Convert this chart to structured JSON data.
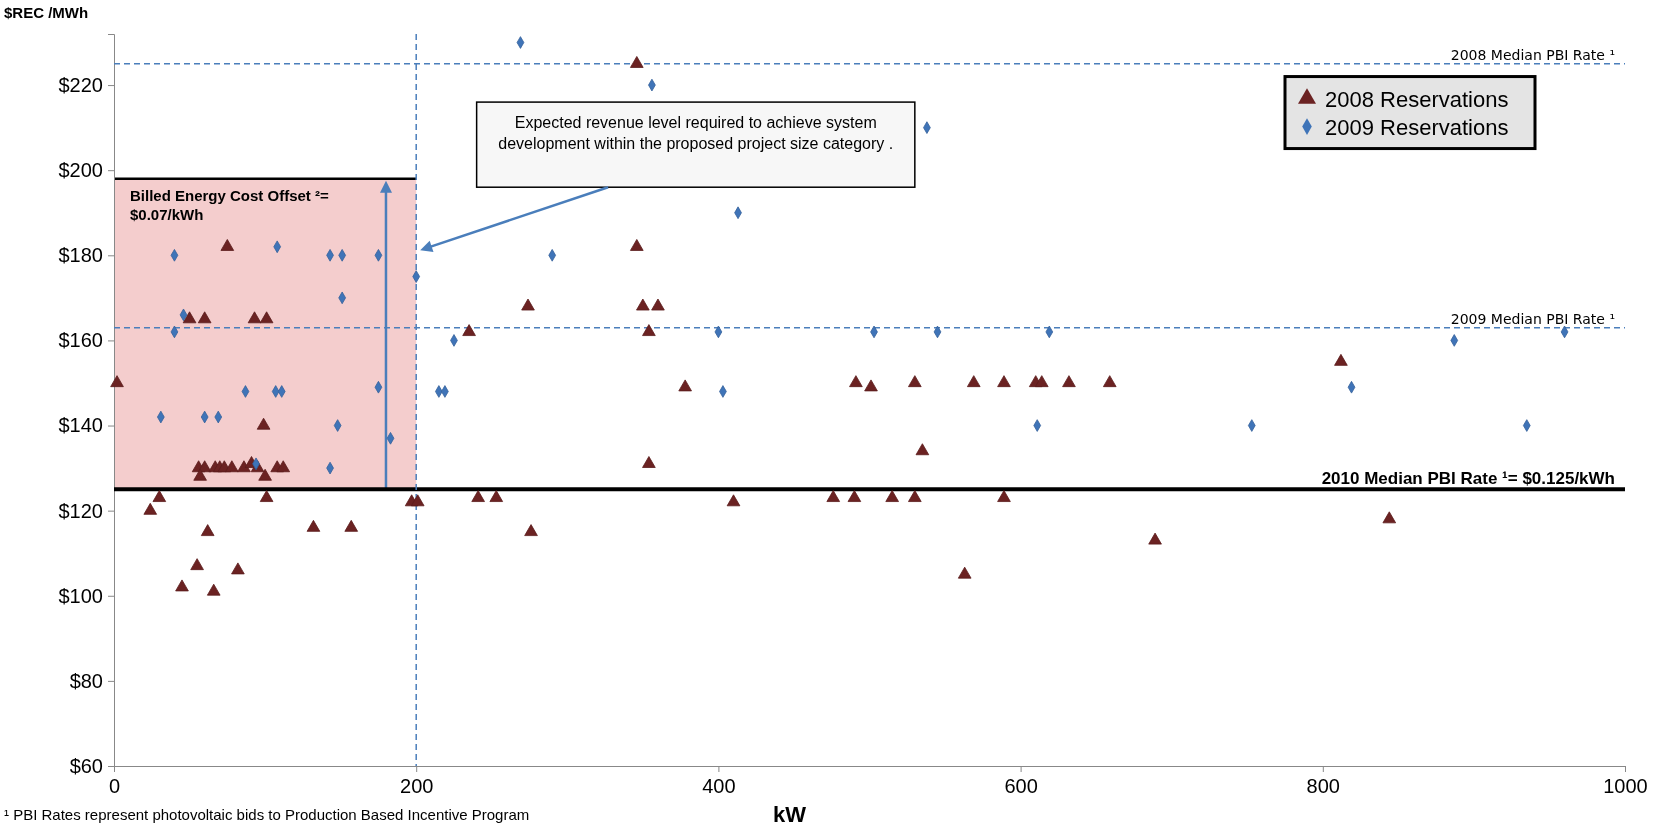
{
  "chart_data": {
    "type": "scatter",
    "ylabel": "$REC /MWh",
    "xlabel": "kW",
    "xlim": [
      0,
      1000
    ],
    "xticks": [
      0,
      200,
      400,
      600,
      800,
      1000
    ],
    "ylim": [
      60,
      232
    ],
    "yticks": [
      {
        "value": 60,
        "label": "$60"
      },
      {
        "value": 80,
        "label": "$80"
      },
      {
        "value": 100,
        "label": "$100"
      },
      {
        "value": 120,
        "label": "$120"
      },
      {
        "value": 140,
        "label": "$140"
      },
      {
        "value": 160,
        "label": "$160"
      },
      {
        "value": 180,
        "label": "$180"
      },
      {
        "value": 200,
        "label": "$200"
      },
      {
        "value": 220,
        "label": "$220"
      }
    ],
    "grid": false,
    "legend": "top right",
    "series": [
      {
        "name": "2008 Reservations",
        "color": "#6b2222",
        "marker": "triangle",
        "x": [
          2,
          75,
          50,
          60,
          93,
          101,
          99,
          56,
          60,
          67,
          70,
          73,
          78,
          86,
          91,
          95,
          108,
          112,
          57,
          100,
          30,
          24,
          101,
          62,
          132,
          157,
          55,
          82,
          45,
          66,
          197,
          201,
          346,
          346,
          274,
          350,
          360,
          235,
          354,
          378,
          491,
          501,
          530,
          569,
          589,
          610,
          614,
          632,
          659,
          535,
          354,
          241,
          253,
          410,
          476,
          490,
          515,
          530,
          589,
          276,
          563,
          689,
          812,
          844
        ],
        "values": [
          150,
          182,
          165,
          165,
          165,
          165,
          140,
          130,
          130,
          130,
          130,
          130,
          130,
          130,
          131,
          130,
          130,
          130,
          128,
          128,
          123,
          120,
          123,
          115,
          116,
          116,
          107,
          106,
          102,
          101,
          122,
          122,
          225,
          182,
          168,
          168,
          168,
          162,
          162,
          149,
          150,
          149,
          150,
          150,
          150,
          150,
          150,
          150,
          150,
          134,
          131,
          123,
          123,
          122,
          123,
          123,
          123,
          123,
          123,
          115,
          105,
          113,
          155,
          118
        ]
      },
      {
        "name": "2009 Reservations",
        "color": "#3f74b8",
        "marker": "diamond",
        "x": [
          269,
          356,
          538,
          413,
          290,
          40,
          108,
          143,
          151,
          175,
          200,
          151,
          46,
          40,
          87,
          107,
          111,
          175,
          215,
          219,
          31,
          60,
          69,
          148,
          183,
          94,
          143,
          225,
          400,
          503,
          545,
          619,
          403,
          611,
          887,
          960,
          819,
          753,
          935
        ],
        "values": [
          230,
          220,
          210,
          190,
          180,
          180,
          182,
          180,
          180,
          180,
          175,
          170,
          166,
          162,
          148,
          148,
          148,
          149,
          148,
          148,
          142,
          142,
          142,
          140,
          137,
          131,
          130,
          160,
          162,
          162,
          162,
          162,
          148,
          140,
          160,
          162,
          149,
          140,
          140
        ]
      }
    ],
    "ref_lines": [
      {
        "axis": "y",
        "value": 225,
        "label": "2008 Median PBI Rate ¹",
        "color": "#4a7ebb",
        "line_style": "dashed"
      },
      {
        "axis": "y",
        "value": 163,
        "label": "2009 Median PBI Rate ¹",
        "color": "#4a7ebb",
        "line_style": "dashed"
      },
      {
        "axis": "y",
        "value": 125,
        "color": "#000000",
        "line_style": "solid"
      },
      {
        "axis": "x",
        "value": 200,
        "color": "#4a7ebb",
        "line_style": "dashed"
      }
    ],
    "bands": [
      {
        "axis": "y",
        "from": 125,
        "to": 198,
        "label": "Billed Energy Cost Offset ²= $0.07/kWh",
        "color": "#f2c4c4"
      }
    ],
    "annotations": [
      "Expected revenue level required to achieve system development within the proposed project size category .",
      "2010 Median PBI Rate ¹= $0.125/kWh",
      "¹ PBI Rates represent photovoltaic bids to Production Based Incentive Program"
    ]
  }
}
